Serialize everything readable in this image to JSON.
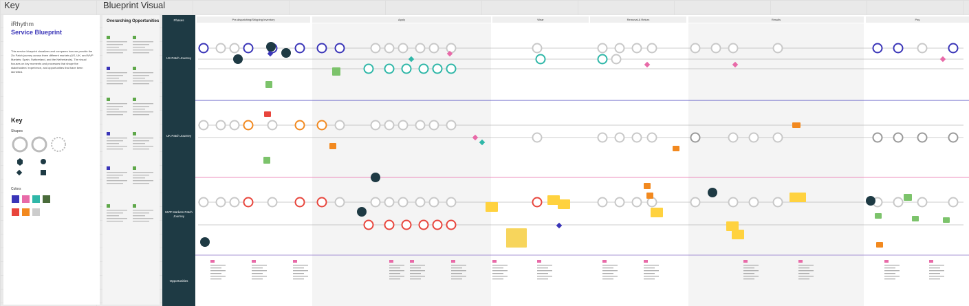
{
  "frame_labels": {
    "key": "Key",
    "blueprint": "Blueprint Visual"
  },
  "key_panel": {
    "brand": "iRhythm",
    "title": "Service Blueprint",
    "intro": "This service blueprint visualizes and compares how we provide the Zio Patch journey across three different markets (US, UK, and MVP Markets: Spain, Switzerland, and the Netherlands). The visual focuses on key moments and processes that shape the stakeholders' experience, and opportunities that have been identified.",
    "key_heading": "Key",
    "shapes_heading": "Shapes",
    "colors_heading": "Colors"
  },
  "opportunities_panel": {
    "title": "Overarching Opportunities"
  },
  "phases": {
    "header": "Phases",
    "rows": [
      {
        "label": "US Patch Journey",
        "color": "#3a35b8"
      },
      {
        "label": "UK Patch Journey",
        "color": "#f2891f"
      },
      {
        "label": "MVP Markets Patch Journey",
        "color": "#e8453c"
      },
      {
        "label": "Opportunities",
        "color": "#999999"
      }
    ]
  },
  "stages": [
    "Pre-dispatching/Shipping Inventory",
    "Apply",
    "Wear",
    "Removal & Return",
    "Results",
    "Pay"
  ],
  "colors": {
    "us": "#3a35b8",
    "uk": "#f2891f",
    "mvp": "#e8453c",
    "teal": "#2fb7a8",
    "pink": "#e86aa8",
    "green": "#5fa84a",
    "sticky_yellow": "#ffd23f",
    "sticky_green": "#7cc36b",
    "navy": "#1e3a44"
  }
}
